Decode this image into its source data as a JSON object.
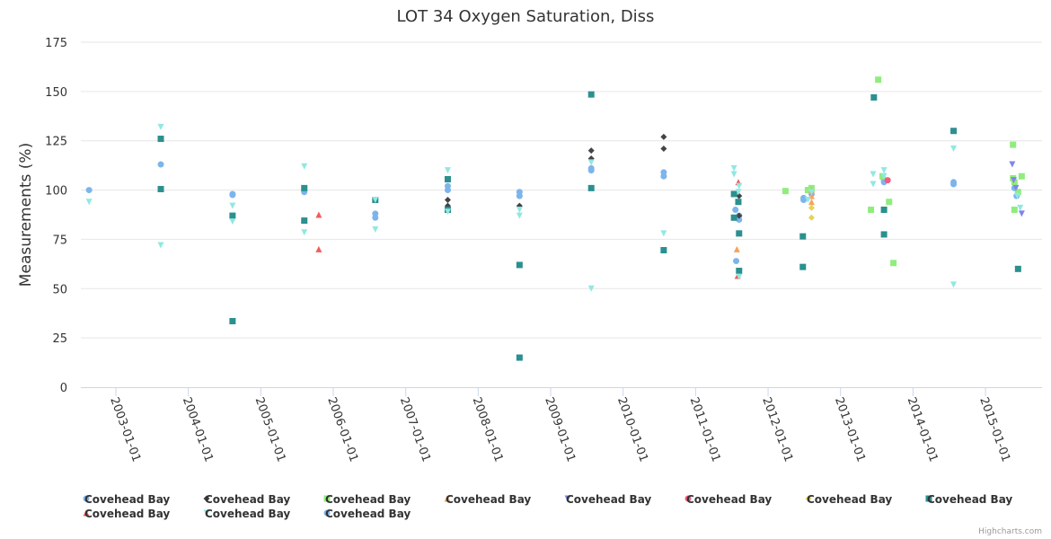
{
  "credits": "Highcharts.com",
  "chart_data": {
    "type": "scatter",
    "title": "LOT 34 Oxygen Saturation, Diss",
    "xlabel": "",
    "ylabel": "Measurements (%)",
    "ylim": [
      0,
      175
    ],
    "yticks": [
      0,
      25,
      50,
      75,
      100,
      125,
      150,
      175
    ],
    "xlim": [
      2002.5,
      2015.76
    ],
    "xticks": [
      {
        "value": 2003,
        "label": "2003-01-01"
      },
      {
        "value": 2004,
        "label": "2004-01-01"
      },
      {
        "value": 2005,
        "label": "2005-01-01"
      },
      {
        "value": 2006,
        "label": "2006-01-01"
      },
      {
        "value": 2007,
        "label": "2007-01-01"
      },
      {
        "value": 2008,
        "label": "2008-01-01"
      },
      {
        "value": 2009,
        "label": "2009-01-01"
      },
      {
        "value": 2010,
        "label": "2010-01-01"
      },
      {
        "value": 2011,
        "label": "2011-01-01"
      },
      {
        "value": 2012,
        "label": "2012-01-01"
      },
      {
        "value": 2013,
        "label": "2013-01-01"
      },
      {
        "value": 2014,
        "label": "2014-01-01"
      },
      {
        "value": 2015,
        "label": "2015-01-01"
      }
    ],
    "grid": true,
    "legend_position": "bottom",
    "series": [
      {
        "name": "Covehead Bay",
        "color": "#7cb5ec",
        "symbol": "circle",
        "points": [
          [
            2002.63,
            100
          ],
          [
            2003.62,
            113
          ],
          [
            2004.61,
            98
          ],
          [
            2004.61,
            97.5
          ],
          [
            2005.6,
            100
          ],
          [
            2005.6,
            99
          ],
          [
            2006.58,
            88
          ],
          [
            2006.58,
            86
          ],
          [
            2007.58,
            102
          ],
          [
            2007.58,
            100
          ],
          [
            2008.57,
            99
          ],
          [
            2008.57,
            97
          ],
          [
            2009.56,
            110
          ],
          [
            2009.56,
            111
          ],
          [
            2010.56,
            109
          ],
          [
            2010.56,
            107
          ],
          [
            2011.55,
            90
          ],
          [
            2011.56,
            64
          ],
          [
            2011.6,
            87
          ],
          [
            2011.6,
            85
          ],
          [
            2012.49,
            96
          ],
          [
            2012.49,
            95
          ],
          [
            2012.6,
            100
          ],
          [
            2012.6,
            98
          ],
          [
            2013.6,
            105
          ],
          [
            2013.6,
            104
          ],
          [
            2014.56,
            104
          ],
          [
            2014.56,
            103
          ],
          [
            2015.4,
            101
          ],
          [
            2015.43,
            97
          ]
        ]
      },
      {
        "name": "Covehead Bay",
        "color": "#434348",
        "symbol": "diamond",
        "points": [
          [
            2007.58,
            95
          ],
          [
            2007.58,
            92
          ],
          [
            2008.57,
            92
          ],
          [
            2009.56,
            120
          ],
          [
            2009.56,
            116
          ],
          [
            2010.56,
            127
          ],
          [
            2010.56,
            121
          ],
          [
            2011.6,
            97
          ],
          [
            2011.6,
            87
          ]
        ]
      },
      {
        "name": "Covehead Bay",
        "color": "#90ed7d",
        "symbol": "square",
        "points": [
          [
            2012.24,
            99.5
          ],
          [
            2012.55,
            100
          ],
          [
            2012.6,
            101
          ],
          [
            2013.42,
            90
          ],
          [
            2013.52,
            156
          ],
          [
            2013.58,
            107
          ],
          [
            2013.67,
            94
          ],
          [
            2013.73,
            63
          ],
          [
            2015.38,
            123
          ],
          [
            2015.38,
            106
          ],
          [
            2015.4,
            104
          ],
          [
            2015.45,
            99
          ],
          [
            2015.5,
            107
          ],
          [
            2015.4,
            90
          ]
        ]
      },
      {
        "name": "Covehead Bay",
        "color": "#f7a35c",
        "symbol": "triangle",
        "points": [
          [
            2011.57,
            70
          ],
          [
            2012.6,
            100
          ],
          [
            2012.6,
            97
          ],
          [
            2012.6,
            94
          ]
        ]
      },
      {
        "name": "Covehead Bay",
        "color": "#8085e9",
        "symbol": "triangle-down",
        "points": [
          [
            2015.37,
            113
          ],
          [
            2015.39,
            105
          ],
          [
            2015.42,
            101
          ],
          [
            2015.5,
            88
          ]
        ]
      },
      {
        "name": "Covehead Bay",
        "color": "#f15c80",
        "symbol": "circle",
        "points": [
          [
            2013.65,
            105
          ]
        ]
      },
      {
        "name": "Covehead Bay",
        "color": "#e4d354",
        "symbol": "diamond",
        "points": [
          [
            2012.6,
            91
          ],
          [
            2012.6,
            86
          ]
        ]
      },
      {
        "name": "Covehead Bay",
        "color": "#2b908f",
        "symbol": "square",
        "points": [
          [
            2003.62,
            126
          ],
          [
            2003.62,
            100.5
          ],
          [
            2004.61,
            87
          ],
          [
            2004.61,
            33.5
          ],
          [
            2005.6,
            101
          ],
          [
            2005.6,
            84.5
          ],
          [
            2006.58,
            95
          ],
          [
            2007.58,
            105.5
          ],
          [
            2007.58,
            90
          ],
          [
            2008.57,
            62
          ],
          [
            2008.57,
            15
          ],
          [
            2009.56,
            148.5
          ],
          [
            2009.56,
            101
          ],
          [
            2010.56,
            69.5
          ],
          [
            2011.53,
            98
          ],
          [
            2011.53,
            86
          ],
          [
            2011.59,
            94
          ],
          [
            2011.6,
            78
          ],
          [
            2011.6,
            59
          ],
          [
            2012.48,
            76.5
          ],
          [
            2012.48,
            61
          ],
          [
            2013.46,
            147
          ],
          [
            2013.6,
            90
          ],
          [
            2013.6,
            77.5
          ],
          [
            2014.56,
            130
          ],
          [
            2015.45,
            60
          ]
        ]
      },
      {
        "name": "Covehead Bay",
        "color": "#f45b5b",
        "symbol": "triangle",
        "points": [
          [
            2005.8,
            87.5
          ],
          [
            2005.8,
            70
          ],
          [
            2011.59,
            104
          ],
          [
            2011.58,
            56.5
          ]
        ]
      },
      {
        "name": "Covehead Bay",
        "color": "#91e8e1",
        "symbol": "triangle-down",
        "points": [
          [
            2002.63,
            94
          ],
          [
            2003.62,
            132
          ],
          [
            2003.62,
            72
          ],
          [
            2004.61,
            92
          ],
          [
            2004.61,
            84
          ],
          [
            2005.6,
            112
          ],
          [
            2005.6,
            78.5
          ],
          [
            2006.58,
            95
          ],
          [
            2006.58,
            80
          ],
          [
            2007.58,
            110
          ],
          [
            2007.58,
            89
          ],
          [
            2008.57,
            90
          ],
          [
            2008.57,
            87
          ],
          [
            2009.56,
            114
          ],
          [
            2009.56,
            50
          ],
          [
            2010.56,
            78
          ],
          [
            2011.53,
            111
          ],
          [
            2011.53,
            108
          ],
          [
            2011.6,
            102
          ],
          [
            2011.6,
            56
          ],
          [
            2011.59,
            99
          ],
          [
            2012.55,
            95
          ],
          [
            2012.6,
            99
          ],
          [
            2013.45,
            108
          ],
          [
            2013.45,
            103
          ],
          [
            2013.6,
            110
          ],
          [
            2013.6,
            107
          ],
          [
            2014.56,
            121
          ],
          [
            2014.56,
            52
          ],
          [
            2015.48,
            91
          ],
          [
            2015.44,
            97
          ]
        ]
      },
      {
        "name": "Covehead Bay",
        "color": "#7cb5ec",
        "symbol": "circle",
        "points": []
      }
    ]
  }
}
